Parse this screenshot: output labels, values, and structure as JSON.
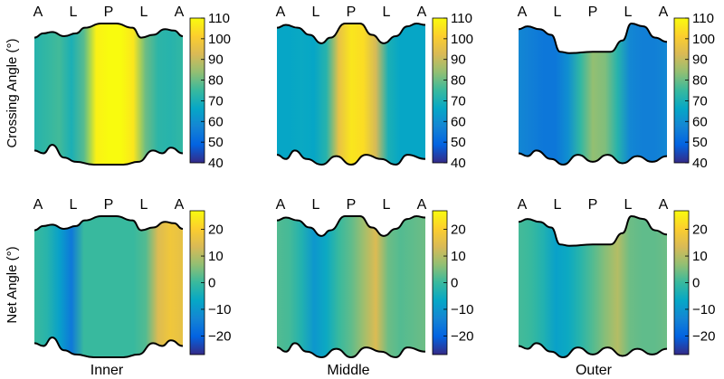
{
  "figure": {
    "row_labels": [
      "Crossing Angle (°)",
      "Net Angle (°)"
    ],
    "column_labels": [
      "Inner",
      "Middle",
      "Outer"
    ],
    "position_labels": [
      "A",
      "L",
      "P",
      "L",
      "A"
    ]
  },
  "colormap": {
    "name": "parula",
    "stops": [
      "#352a87",
      "#0363e1",
      "#1485d4",
      "#06a7c6",
      "#38b99e",
      "#92bf73",
      "#d9ba56",
      "#fcce2e",
      "#f9fb0e"
    ]
  },
  "chart_data": [
    {
      "type": "heatmap",
      "row": "Crossing Angle (°)",
      "column": "Inner",
      "x_categories": [
        "A",
        "L",
        "P",
        "L",
        "A"
      ],
      "colorbar": {
        "range": [
          40,
          110
        ],
        "ticks": [
          110,
          100,
          90,
          80,
          70,
          60,
          50,
          40
        ]
      },
      "values": [
        72,
        74,
        76,
        70,
        78,
        108,
        110,
        110,
        106,
        80,
        73,
        72,
        74
      ]
    },
    {
      "type": "heatmap",
      "row": "Crossing Angle (°)",
      "column": "Middle",
      "x_categories": [
        "A",
        "L",
        "P",
        "L",
        "A"
      ],
      "colorbar": {
        "range": [
          40,
          110
        ],
        "ticks": [
          110,
          100,
          90,
          80,
          70,
          60,
          50,
          40
        ]
      },
      "values": [
        66,
        66,
        67,
        66,
        72,
        96,
        106,
        104,
        92,
        70,
        66,
        66,
        66
      ]
    },
    {
      "type": "heatmap",
      "row": "Crossing Angle (°)",
      "column": "Outer",
      "x_categories": [
        "A",
        "L",
        "P",
        "L",
        "A"
      ],
      "colorbar": {
        "range": [
          40,
          110
        ],
        "ticks": [
          110,
          100,
          90,
          80,
          70,
          60,
          50,
          40
        ]
      },
      "values": [
        58,
        56,
        54,
        54,
        60,
        74,
        84,
        82,
        72,
        58,
        56,
        56,
        58
      ]
    },
    {
      "type": "heatmap",
      "row": "Net Angle (°)",
      "column": "Inner",
      "x_categories": [
        "A",
        "L",
        "P",
        "L",
        "A"
      ],
      "colorbar": {
        "range": [
          -27,
          27
        ],
        "ticks": [
          20,
          10,
          0,
          -10,
          -20
        ]
      },
      "values": [
        0,
        -2,
        -8,
        -16,
        0,
        0,
        0,
        0,
        0,
        2,
        14,
        18,
        16
      ]
    },
    {
      "type": "heatmap",
      "row": "Net Angle (°)",
      "column": "Middle",
      "x_categories": [
        "A",
        "L",
        "P",
        "L",
        "A"
      ],
      "colorbar": {
        "range": [
          -27,
          27
        ],
        "ticks": [
          20,
          10,
          0,
          -10,
          -20
        ]
      },
      "values": [
        2,
        1,
        -3,
        -10,
        -6,
        0,
        3,
        8,
        14,
        4,
        2,
        3,
        4
      ]
    },
    {
      "type": "heatmap",
      "row": "Net Angle (°)",
      "column": "Outer",
      "x_categories": [
        "A",
        "L",
        "P",
        "L",
        "A"
      ],
      "colorbar": {
        "range": [
          -27,
          27
        ],
        "ticks": [
          20,
          10,
          0,
          -10,
          -20
        ]
      },
      "values": [
        1,
        0,
        -3,
        -8,
        -6,
        -2,
        2,
        6,
        10,
        4,
        3,
        3,
        4
      ]
    }
  ]
}
